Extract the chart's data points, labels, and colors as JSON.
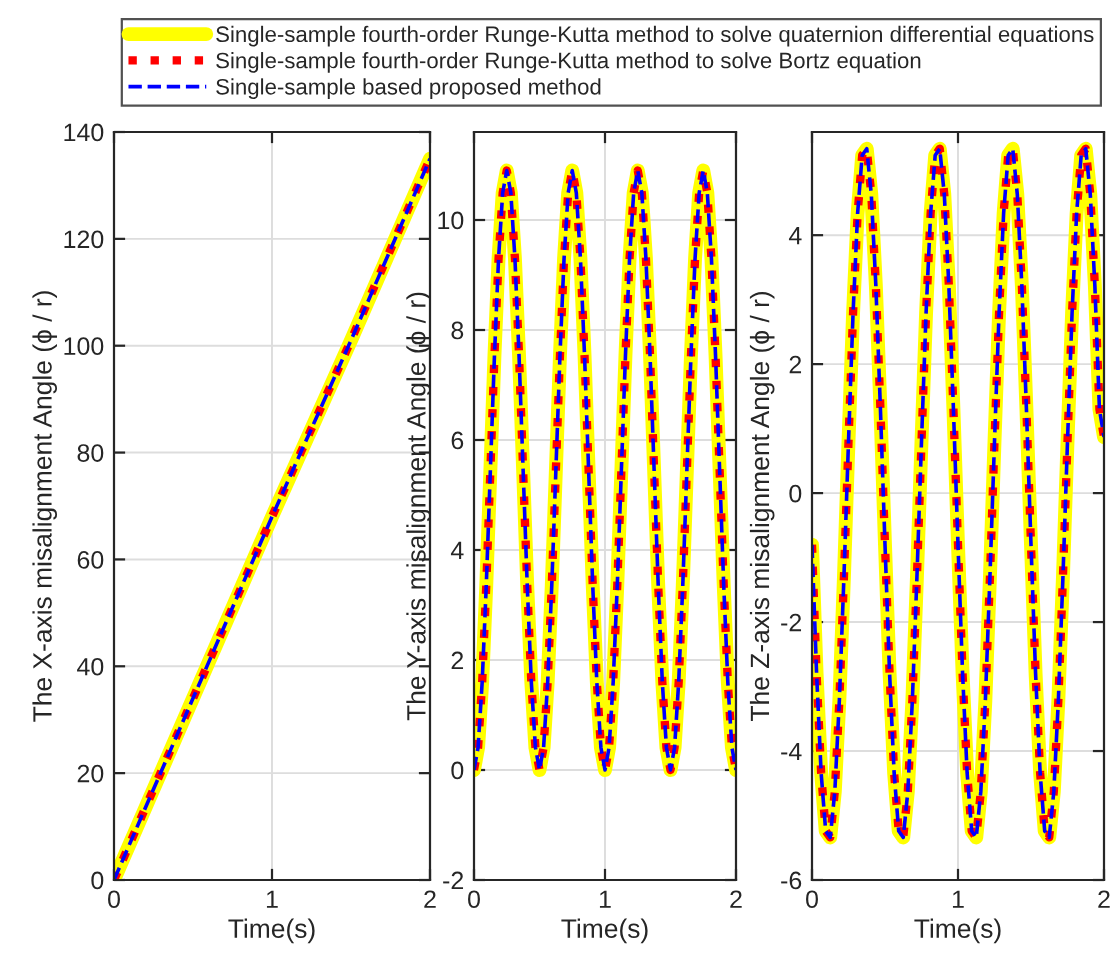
{
  "chart_data": [
    {
      "type": "line",
      "xlabel": "Time(s)",
      "ylabel": "The X-axis misalignment Angle (ϕ / r)",
      "xlim": [
        0,
        2
      ],
      "xticks": [
        0,
        1,
        2
      ],
      "ylim": [
        0,
        140
      ],
      "yticks": [
        0,
        20,
        40,
        60,
        80,
        100,
        120,
        140
      ],
      "grid": true,
      "legend": "top",
      "x": [
        0,
        0.5,
        1,
        1.5,
        2
      ],
      "series": [
        {
          "name": "Single-sample fourth-order Runge-Kutta method to solve quaternion differential equations",
          "color": "#ffff00",
          "line_style": "solid",
          "values": [
            0,
            34,
            68,
            101,
            135
          ]
        },
        {
          "name": "Single-sample fourth-order Runge-Kutta method to solve Bortz equation",
          "color": "#ff0000",
          "line_style": "dotted",
          "values": [
            0,
            34,
            68,
            101,
            135
          ]
        },
        {
          "name": "Single-sample based proposed method",
          "color": "#0000ff",
          "line_style": "dashed",
          "values": [
            0,
            34,
            68,
            101,
            135
          ]
        }
      ]
    },
    {
      "type": "line",
      "xlabel": "Time(s)",
      "ylabel": "The Y-axis misalignment Angle (ϕ / r)",
      "xlim": [
        0,
        2
      ],
      "xticks": [
        0,
        1,
        2
      ],
      "ylim": [
        -2,
        11.6
      ],
      "yticks": [
        -2,
        0,
        2,
        4,
        6,
        8,
        10
      ],
      "grid": true,
      "x": [
        0,
        0.03125,
        0.0625,
        0.09375,
        0.125,
        0.15625,
        0.1875,
        0.21875,
        0.25,
        0.28125,
        0.3125,
        0.34375,
        0.375,
        0.40625,
        0.4375,
        0.46875,
        0.5,
        0.53125,
        0.5625,
        0.59375,
        0.625,
        0.65625,
        0.6875,
        0.71875,
        0.75,
        0.78125,
        0.8125,
        0.84375,
        0.875,
        0.90625,
        0.9375,
        0.96875,
        1,
        1.03125,
        1.0625,
        1.09375,
        1.125,
        1.15625,
        1.1875,
        1.21875,
        1.25,
        1.28125,
        1.3125,
        1.34375,
        1.375,
        1.40625,
        1.4375,
        1.46875,
        1.5,
        1.53125,
        1.5625,
        1.59375,
        1.625,
        1.65625,
        1.6875,
        1.71875,
        1.75,
        1.78125,
        1.8125,
        1.84375,
        1.875,
        1.90625,
        1.9375,
        1.96875,
        2
      ],
      "series": [
        {
          "color": "#ffff00",
          "line_style": "solid",
          "values": [
            0,
            0.41,
            1.6,
            3.36,
            5.45,
            7.54,
            9.3,
            10.49,
            10.9,
            10.49,
            9.3,
            7.54,
            5.45,
            3.36,
            1.6,
            0.41,
            0,
            0.41,
            1.6,
            3.36,
            5.45,
            7.54,
            9.3,
            10.49,
            10.9,
            10.49,
            9.3,
            7.54,
            5.45,
            3.36,
            1.6,
            0.41,
            0,
            0.41,
            1.6,
            3.36,
            5.45,
            7.54,
            9.3,
            10.49,
            10.9,
            10.49,
            9.3,
            7.54,
            5.45,
            3.36,
            1.6,
            0.41,
            0,
            0.41,
            1.6,
            3.36,
            5.45,
            7.54,
            9.3,
            10.49,
            10.9,
            10.49,
            9.3,
            7.54,
            5.45,
            3.36,
            1.6,
            0.41,
            0
          ]
        },
        {
          "color": "#ff0000",
          "line_style": "dotted",
          "values": [
            0,
            0.41,
            1.6,
            3.36,
            5.45,
            7.54,
            9.3,
            10.49,
            10.9,
            10.49,
            9.3,
            7.54,
            5.45,
            3.36,
            1.6,
            0.41,
            0,
            0.41,
            1.6,
            3.36,
            5.45,
            7.54,
            9.3,
            10.49,
            10.9,
            10.49,
            9.3,
            7.54,
            5.45,
            3.36,
            1.6,
            0.41,
            0,
            0.41,
            1.6,
            3.36,
            5.45,
            7.54,
            9.3,
            10.49,
            10.9,
            10.49,
            9.3,
            7.54,
            5.45,
            3.36,
            1.6,
            0.41,
            0,
            0.41,
            1.6,
            3.36,
            5.45,
            7.54,
            9.3,
            10.49,
            10.9,
            10.49,
            9.3,
            7.54,
            5.45,
            3.36,
            1.6,
            0.41,
            0
          ]
        },
        {
          "color": "#0000ff",
          "line_style": "dashed",
          "values": [
            0,
            0.41,
            1.6,
            3.36,
            5.45,
            7.54,
            9.3,
            10.49,
            10.9,
            10.49,
            9.3,
            7.54,
            5.45,
            3.36,
            1.6,
            0.41,
            0,
            0.41,
            1.6,
            3.36,
            5.45,
            7.54,
            9.3,
            10.49,
            10.9,
            10.49,
            9.3,
            7.54,
            5.45,
            3.36,
            1.6,
            0.41,
            0,
            0.41,
            1.6,
            3.36,
            5.45,
            7.54,
            9.3,
            10.49,
            10.9,
            10.49,
            9.3,
            7.54,
            5.45,
            3.36,
            1.6,
            0.41,
            0,
            0.41,
            1.6,
            3.36,
            5.45,
            7.54,
            9.3,
            10.49,
            10.9,
            10.49,
            9.3,
            7.54,
            5.45,
            3.36,
            1.6,
            0.41,
            0
          ]
        }
      ]
    },
    {
      "type": "line",
      "xlabel": "Time(s)",
      "ylabel": "The Z-axis misalignment Angle (ϕ / r)",
      "xlim": [
        0,
        2
      ],
      "xticks": [
        0,
        1,
        2
      ],
      "ylim": [
        -6,
        5.6
      ],
      "yticks": [
        -6,
        -4,
        -2,
        0,
        2,
        4
      ],
      "grid": true,
      "x": [
        0,
        0.03125,
        0.0625,
        0.09375,
        0.125,
        0.15625,
        0.1875,
        0.21875,
        0.25,
        0.28125,
        0.3125,
        0.34375,
        0.375,
        0.40625,
        0.4375,
        0.46875,
        0.5,
        0.53125,
        0.5625,
        0.59375,
        0.625,
        0.65625,
        0.6875,
        0.71875,
        0.75,
        0.78125,
        0.8125,
        0.84375,
        0.875,
        0.90625,
        0.9375,
        0.96875,
        1,
        1.03125,
        1.0625,
        1.09375,
        1.125,
        1.15625,
        1.1875,
        1.21875,
        1.25,
        1.28125,
        1.3125,
        1.34375,
        1.375,
        1.40625,
        1.4375,
        1.46875,
        1.5,
        1.53125,
        1.5625,
        1.59375,
        1.625,
        1.65625,
        1.6875,
        1.71875,
        1.75,
        1.78125,
        1.8125,
        1.84375,
        1.875,
        1.90625,
        1.9375,
        1.96875,
        2
      ],
      "series": [
        {
          "color": "#ffff00",
          "line_style": "solid",
          "values": [
            -0.8,
            -2.79,
            -4.34,
            -5.24,
            -5.34,
            -4.63,
            -3.21,
            -1.3,
            0.8,
            2.79,
            4.34,
            5.24,
            5.34,
            4.63,
            3.21,
            1.3,
            -0.8,
            -2.79,
            -4.34,
            -5.24,
            -5.34,
            -4.63,
            -3.21,
            -1.3,
            0.8,
            2.79,
            4.34,
            5.24,
            5.34,
            4.63,
            3.21,
            1.3,
            -0.8,
            -2.79,
            -4.34,
            -5.24,
            -5.34,
            -4.63,
            -3.21,
            -1.3,
            0.8,
            2.79,
            4.34,
            5.24,
            5.34,
            4.63,
            3.21,
            1.3,
            -0.8,
            -2.79,
            -4.34,
            -5.24,
            -5.34,
            -4.63,
            -3.21,
            -1.3,
            0.8,
            2.79,
            4.34,
            5.24,
            5.34,
            4.63,
            3.21,
            1.3,
            0.87
          ]
        },
        {
          "color": "#ff0000",
          "line_style": "dotted",
          "values": [
            -0.8,
            -2.79,
            -4.34,
            -5.24,
            -5.34,
            -4.63,
            -3.21,
            -1.3,
            0.8,
            2.79,
            4.34,
            5.24,
            5.34,
            4.63,
            3.21,
            1.3,
            -0.8,
            -2.79,
            -4.34,
            -5.24,
            -5.34,
            -4.63,
            -3.21,
            -1.3,
            0.8,
            2.79,
            4.34,
            5.24,
            5.34,
            4.63,
            3.21,
            1.3,
            -0.8,
            -2.79,
            -4.34,
            -5.24,
            -5.34,
            -4.63,
            -3.21,
            -1.3,
            0.8,
            2.79,
            4.34,
            5.24,
            5.34,
            4.63,
            3.21,
            1.3,
            -0.8,
            -2.79,
            -4.34,
            -5.24,
            -5.34,
            -4.63,
            -3.21,
            -1.3,
            0.8,
            2.79,
            4.34,
            5.24,
            5.34,
            4.63,
            3.21,
            1.3,
            0.87
          ]
        },
        {
          "color": "#0000ff",
          "line_style": "dashed",
          "values": [
            -0.8,
            -2.79,
            -4.34,
            -5.24,
            -5.34,
            -4.63,
            -3.21,
            -1.3,
            0.8,
            2.79,
            4.34,
            5.24,
            5.34,
            4.63,
            3.21,
            1.3,
            -0.8,
            -2.79,
            -4.34,
            -5.24,
            -5.34,
            -4.63,
            -3.21,
            -1.3,
            0.8,
            2.79,
            4.34,
            5.24,
            5.34,
            4.63,
            3.21,
            1.3,
            -0.8,
            -2.79,
            -4.34,
            -5.24,
            -5.34,
            -4.63,
            -3.21,
            -1.3,
            0.8,
            2.79,
            4.34,
            5.24,
            5.34,
            4.63,
            3.21,
            1.3,
            -0.8,
            -2.79,
            -4.34,
            -5.24,
            -5.34,
            -4.63,
            -3.21,
            -1.3,
            0.8,
            2.79,
            4.34,
            5.24,
            5.34,
            4.63,
            3.21,
            1.3,
            0.87
          ]
        }
      ]
    }
  ]
}
